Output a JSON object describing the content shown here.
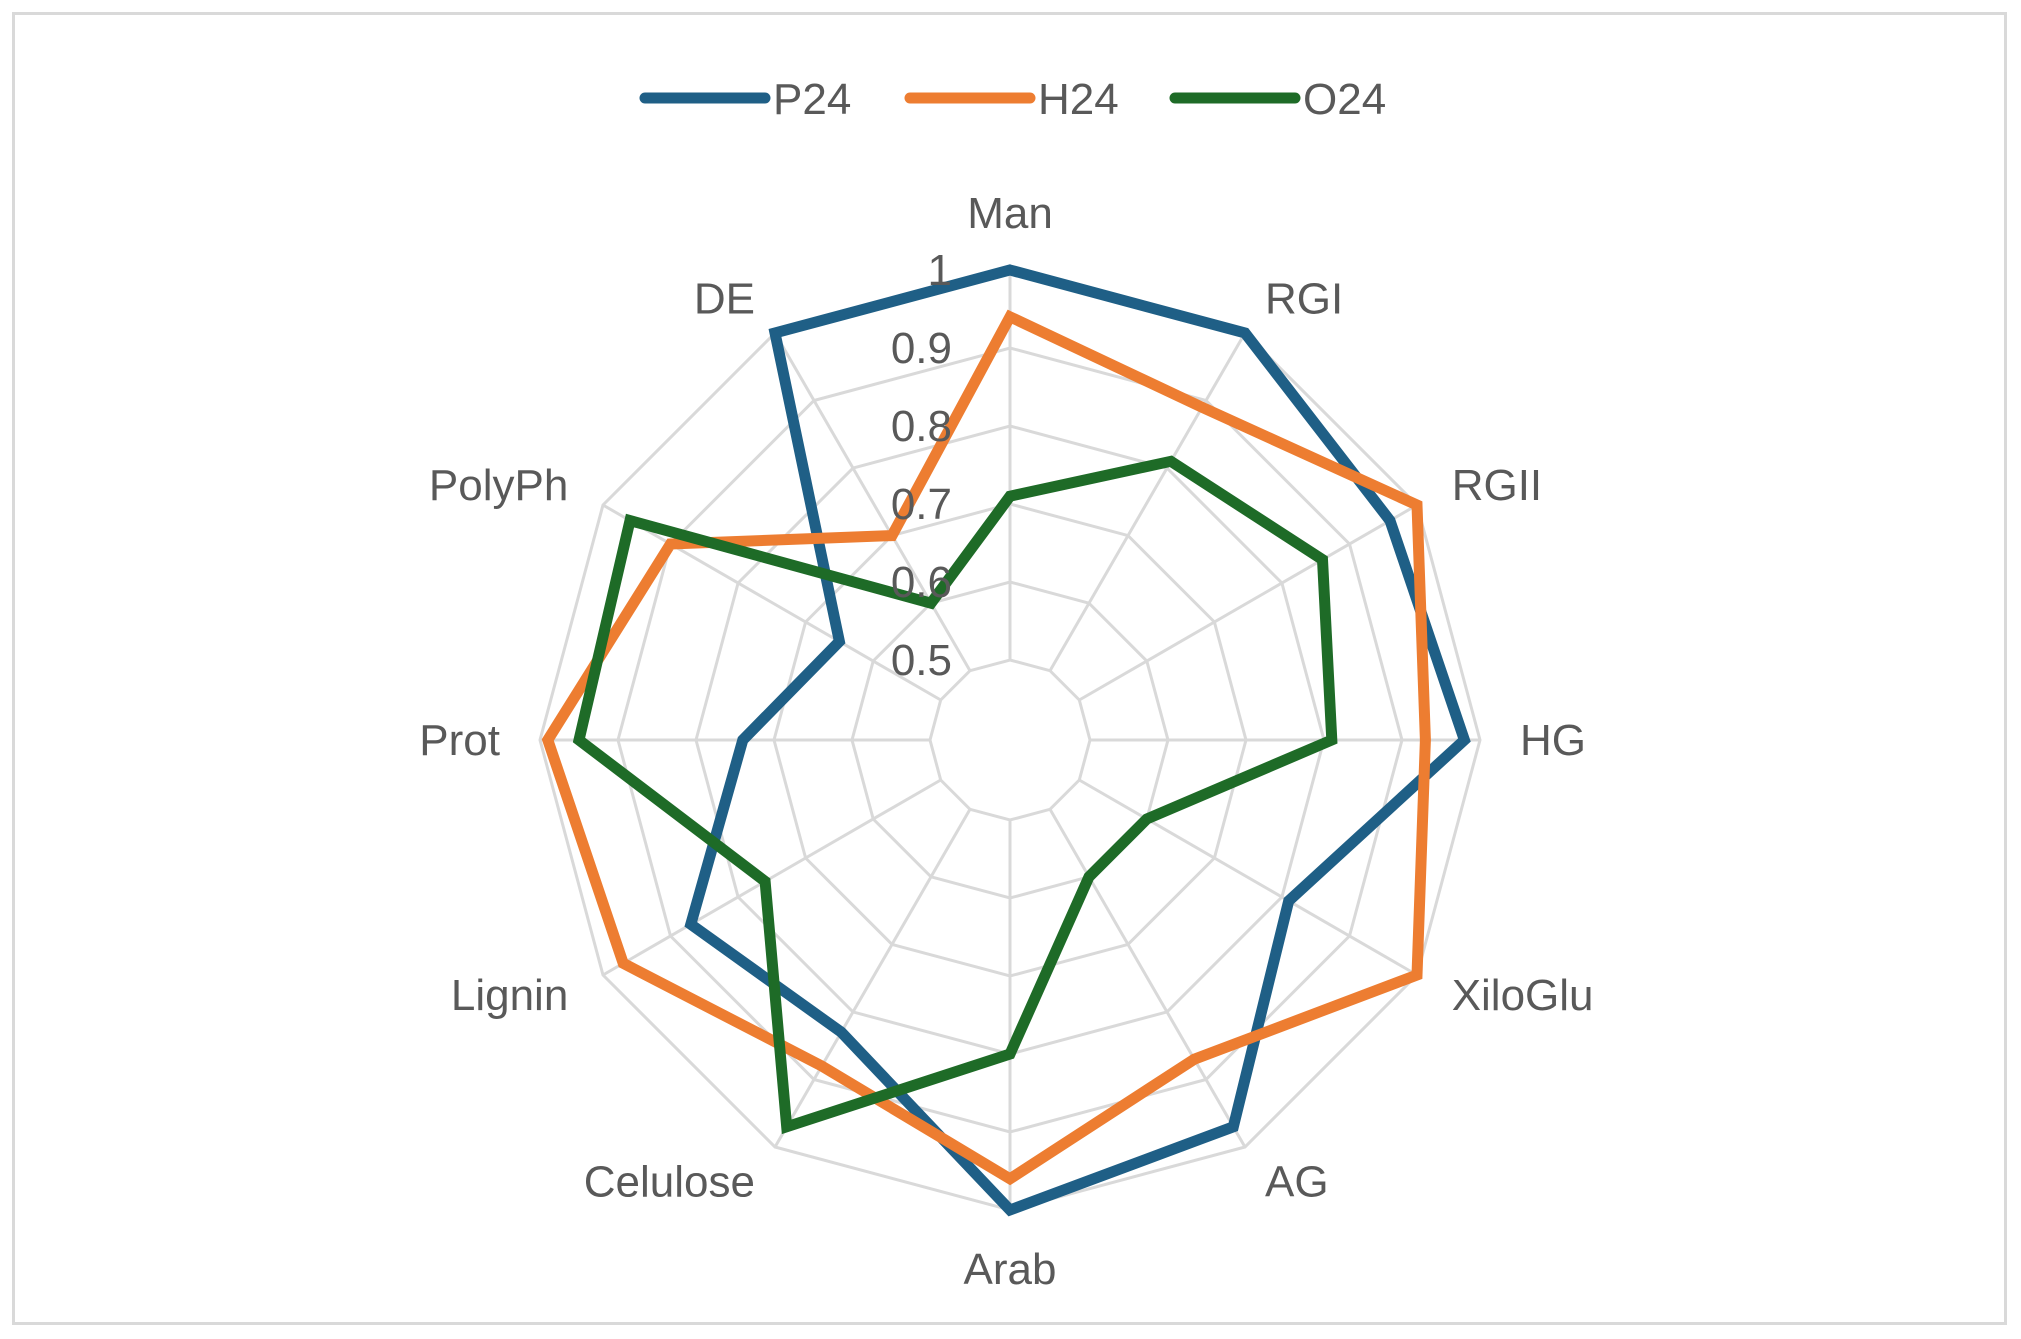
{
  "chart_data": {
    "type": "radar",
    "title": "",
    "categories": [
      "Man",
      "RGI",
      "RGII",
      "HG",
      "XiloGlu",
      "AG",
      "Arab",
      "Celulose",
      "Lignin",
      "Prot",
      "PolyPh",
      "DE"
    ],
    "rlim": [
      0.5,
      1.0
    ],
    "ticks": [
      0.5,
      0.6,
      0.7,
      0.8,
      0.9,
      1.0
    ],
    "tick_labels": [
      "0.5",
      "0.6",
      "0.7",
      "0.8",
      "0.9",
      "1"
    ],
    "grid": true,
    "legend_position": "top",
    "series": [
      {
        "name": "P24",
        "color": "#1f5f86",
        "values": [
          1.0,
          1.0,
          0.96,
          0.98,
          0.81,
          0.97,
          1.0,
          0.83,
          0.87,
          0.74,
          0.65,
          1.0
        ]
      },
      {
        "name": "H24",
        "color": "#ed7d31",
        "values": [
          0.94,
          0.89,
          1.0,
          0.93,
          1.0,
          0.87,
          0.96,
          0.88,
          0.97,
          0.99,
          0.9,
          0.7
        ]
      },
      {
        "name": "O24",
        "color": "#1e6b27",
        "values": [
          0.71,
          0.81,
          0.86,
          0.81,
          0.6,
          0.6,
          0.8,
          0.97,
          0.76,
          0.95,
          0.96,
          0.6
        ]
      }
    ]
  }
}
